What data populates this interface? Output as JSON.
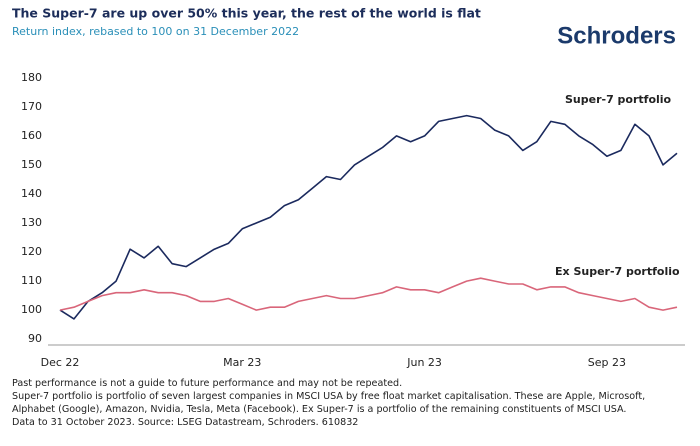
{
  "chart_data": {
    "type": "line",
    "title": "The Super-7 are up over 50% this year, the rest of the world is flat",
    "subtitle": "Return index, rebased to 100 on 31 December 2022",
    "logo": "Schroders",
    "categories": [
      "Dec 22",
      null,
      null,
      null,
      null,
      null,
      null,
      null,
      null,
      null,
      null,
      null,
      null,
      "Mar 23",
      null,
      null,
      null,
      null,
      null,
      null,
      null,
      null,
      null,
      null,
      null,
      null,
      "Jun 23",
      null,
      null,
      null,
      null,
      null,
      null,
      null,
      null,
      null,
      null,
      null,
      null,
      "Sep 23",
      null,
      null,
      null,
      null,
      null
    ],
    "series": [
      {
        "name": "Super-7 portfolio",
        "color": "#1b2a5e",
        "values": [
          100,
          97,
          103,
          106,
          110,
          121,
          118,
          122,
          116,
          115,
          118,
          121,
          123,
          128,
          130,
          132,
          136,
          138,
          142,
          146,
          145,
          150,
          153,
          156,
          160,
          158,
          160,
          165,
          166,
          167,
          166,
          162,
          160,
          155,
          158,
          165,
          164,
          160,
          157,
          153,
          155,
          164,
          160,
          150,
          154
        ]
      },
      {
        "name": "Ex Super-7 portfolio",
        "color": "#d9667a",
        "values": [
          100,
          101,
          103,
          105,
          106,
          106,
          107,
          106,
          106,
          105,
          103,
          103,
          104,
          102,
          100,
          101,
          101,
          103,
          104,
          105,
          104,
          104,
          105,
          106,
          108,
          107,
          107,
          106,
          108,
          110,
          111,
          110,
          109,
          109,
          107,
          108,
          108,
          106,
          105,
          104,
          103,
          104,
          101,
          100,
          101
        ]
      }
    ],
    "ylim": [
      88,
      182
    ],
    "yticks": [
      90,
      100,
      110,
      120,
      130,
      140,
      150,
      160,
      170,
      180
    ],
    "grid": false,
    "notes": [
      "Past performance is not a guide to future performance and may not be repeated.",
      "Super-7 portfolio is portfolio of seven largest companies in MSCI USA by free float market capitalisation. These are Apple, Microsoft,",
      "Alphabet (Google), Amazon, Nvidia, Tesla, Meta (Facebook). Ex Super-7 is a portfolio of the remaining constituents of MSCI USA.",
      "Data to 31 October 2023. Source: LSEG Datastream, Schroders. 610832"
    ]
  }
}
